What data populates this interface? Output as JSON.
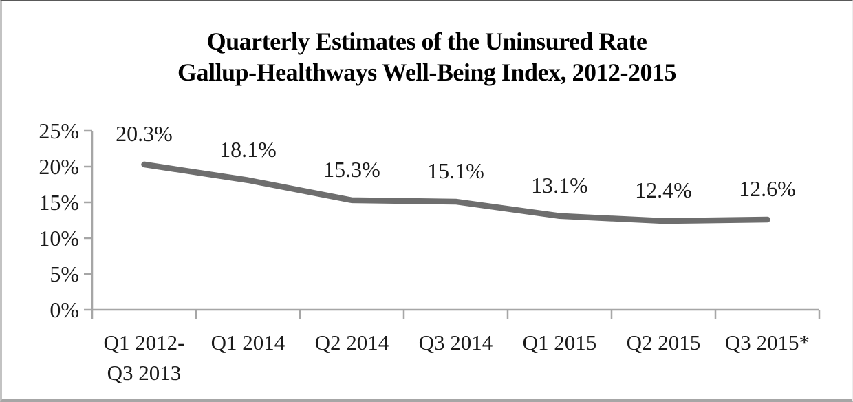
{
  "chart_data": {
    "type": "line",
    "title": "Quarterly Estimates of the Uninsured Rate",
    "subtitle": "Gallup-Healthways Well-Being Index, 2012-2015",
    "categories": [
      "Q1 2012-\nQ3 2013",
      "Q1 2014",
      "Q2 2014",
      "Q3 2014",
      "Q1 2015",
      "Q2 2015",
      "Q3 2015*"
    ],
    "values": [
      20.3,
      18.1,
      15.3,
      15.1,
      13.1,
      12.4,
      12.6
    ],
    "point_labels": [
      "20.3%",
      "18.1%",
      "15.3%",
      "15.1%",
      "13.1%",
      "12.4%",
      "12.6%"
    ],
    "y_axis": {
      "ticks": [
        {
          "value": 0,
          "label": "0%"
        },
        {
          "value": 5,
          "label": "5%"
        },
        {
          "value": 10,
          "label": "10%"
        },
        {
          "value": 15,
          "label": "15%"
        },
        {
          "value": 20,
          "label": "20%"
        },
        {
          "value": 25,
          "label": "25%"
        }
      ]
    },
    "ylim": [
      0,
      25
    ],
    "xlabel": "",
    "ylabel": "",
    "legend": "none",
    "grid": false,
    "colors": {
      "line": "#6e6e6e",
      "axis": "#a6a6a6",
      "label_text": "#1a1a1a",
      "title_text": "#000000",
      "background": "#ffffff"
    }
  }
}
